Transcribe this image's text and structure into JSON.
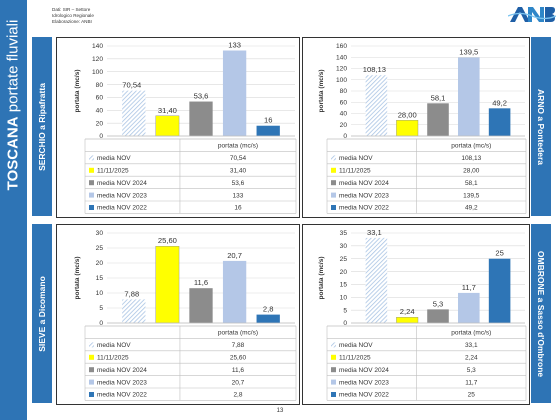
{
  "page": {
    "title_bold": "TOSCANA",
    "title_rest": " portate fluviali",
    "source_lines": [
      "Dati: SIR – Settore",
      "Idrologico Regionale",
      "Elaborazione: ANBI"
    ],
    "logo_text": "ANBI",
    "page_number": "13"
  },
  "colors": {
    "band": "#2e74b5",
    "media_nov": "#a9c4e4",
    "day": "#ffff00",
    "y2024": "#8c8c8c",
    "y2023": "#b4c7e7",
    "y2022": "#2e75b6"
  },
  "chart_data": [
    {
      "type": "bar",
      "station": "SERCHIO a Ripafratta",
      "ylabel": "portata (mc/s)",
      "table_header": "portata (mc/s)",
      "ylim": [
        0,
        140
      ],
      "yticks": [
        "0",
        "20",
        "40",
        "60",
        "80",
        "100",
        "120",
        "140"
      ],
      "series": [
        {
          "name": "media NOV",
          "value": 70.54,
          "label": "70,54"
        },
        {
          "name": "11/11/2025",
          "value": 31.4,
          "label": "31,40"
        },
        {
          "name": "media NOV 2024",
          "value": 53.6,
          "label": "53,6"
        },
        {
          "name": "media NOV 2023",
          "value": 133,
          "label": "133"
        },
        {
          "name": "media NOV 2022",
          "value": 16,
          "label": "16"
        }
      ]
    },
    {
      "type": "bar",
      "station": "ARNO a Pontedera",
      "ylabel": "portata (mc/s)",
      "table_header": "portata (mc/s)",
      "ylim": [
        0,
        160
      ],
      "yticks": [
        "0",
        "20",
        "40",
        "60",
        "80",
        "100",
        "120",
        "140",
        "160"
      ],
      "series": [
        {
          "name": "media NOV",
          "value": 108.13,
          "label": "108,13"
        },
        {
          "name": "11/11/2025",
          "value": 28.0,
          "label": "28,00"
        },
        {
          "name": "media NOV 2024",
          "value": 58.1,
          "label": "58,1"
        },
        {
          "name": "media NOV 2023",
          "value": 139.5,
          "label": "139,5"
        },
        {
          "name": "media NOV 2022",
          "value": 49.2,
          "label": "49,2"
        }
      ]
    },
    {
      "type": "bar",
      "station": "SIEVE a Dicomano",
      "ylabel": "portata (mc/s)",
      "table_header": "portata (mc/s)",
      "ylim": [
        0,
        30
      ],
      "yticks": [
        "0",
        "5",
        "10",
        "15",
        "20",
        "25",
        "30"
      ],
      "series": [
        {
          "name": "media NOV",
          "value": 7.88,
          "label": "7,88"
        },
        {
          "name": "11/11/2025",
          "value": 25.6,
          "label": "25,60"
        },
        {
          "name": "media NOV 2024",
          "value": 11.6,
          "label": "11,6"
        },
        {
          "name": "media NOV 2023",
          "value": 20.7,
          "label": "20,7"
        },
        {
          "name": "media NOV 2022",
          "value": 2.8,
          "label": "2,8"
        }
      ]
    },
    {
      "type": "bar",
      "station": "OMBRONE a Sasso d'Ombrone",
      "ylabel": "portata (mc/s)",
      "table_header": "portata (mc/s)",
      "ylim": [
        0,
        35
      ],
      "yticks": [
        "0",
        "5",
        "10",
        "15",
        "20",
        "25",
        "30",
        "35"
      ],
      "series": [
        {
          "name": "media NOV",
          "value": 33.1,
          "label": "33,1"
        },
        {
          "name": "11/11/2025",
          "value": 2.24,
          "label": "2,24"
        },
        {
          "name": "media NOV 2024",
          "value": 5.3,
          "label": "5,3"
        },
        {
          "name": "media NOV 2023",
          "value": 11.7,
          "label": "11,7"
        },
        {
          "name": "media NOV 2022",
          "value": 25,
          "label": "25"
        }
      ]
    }
  ]
}
